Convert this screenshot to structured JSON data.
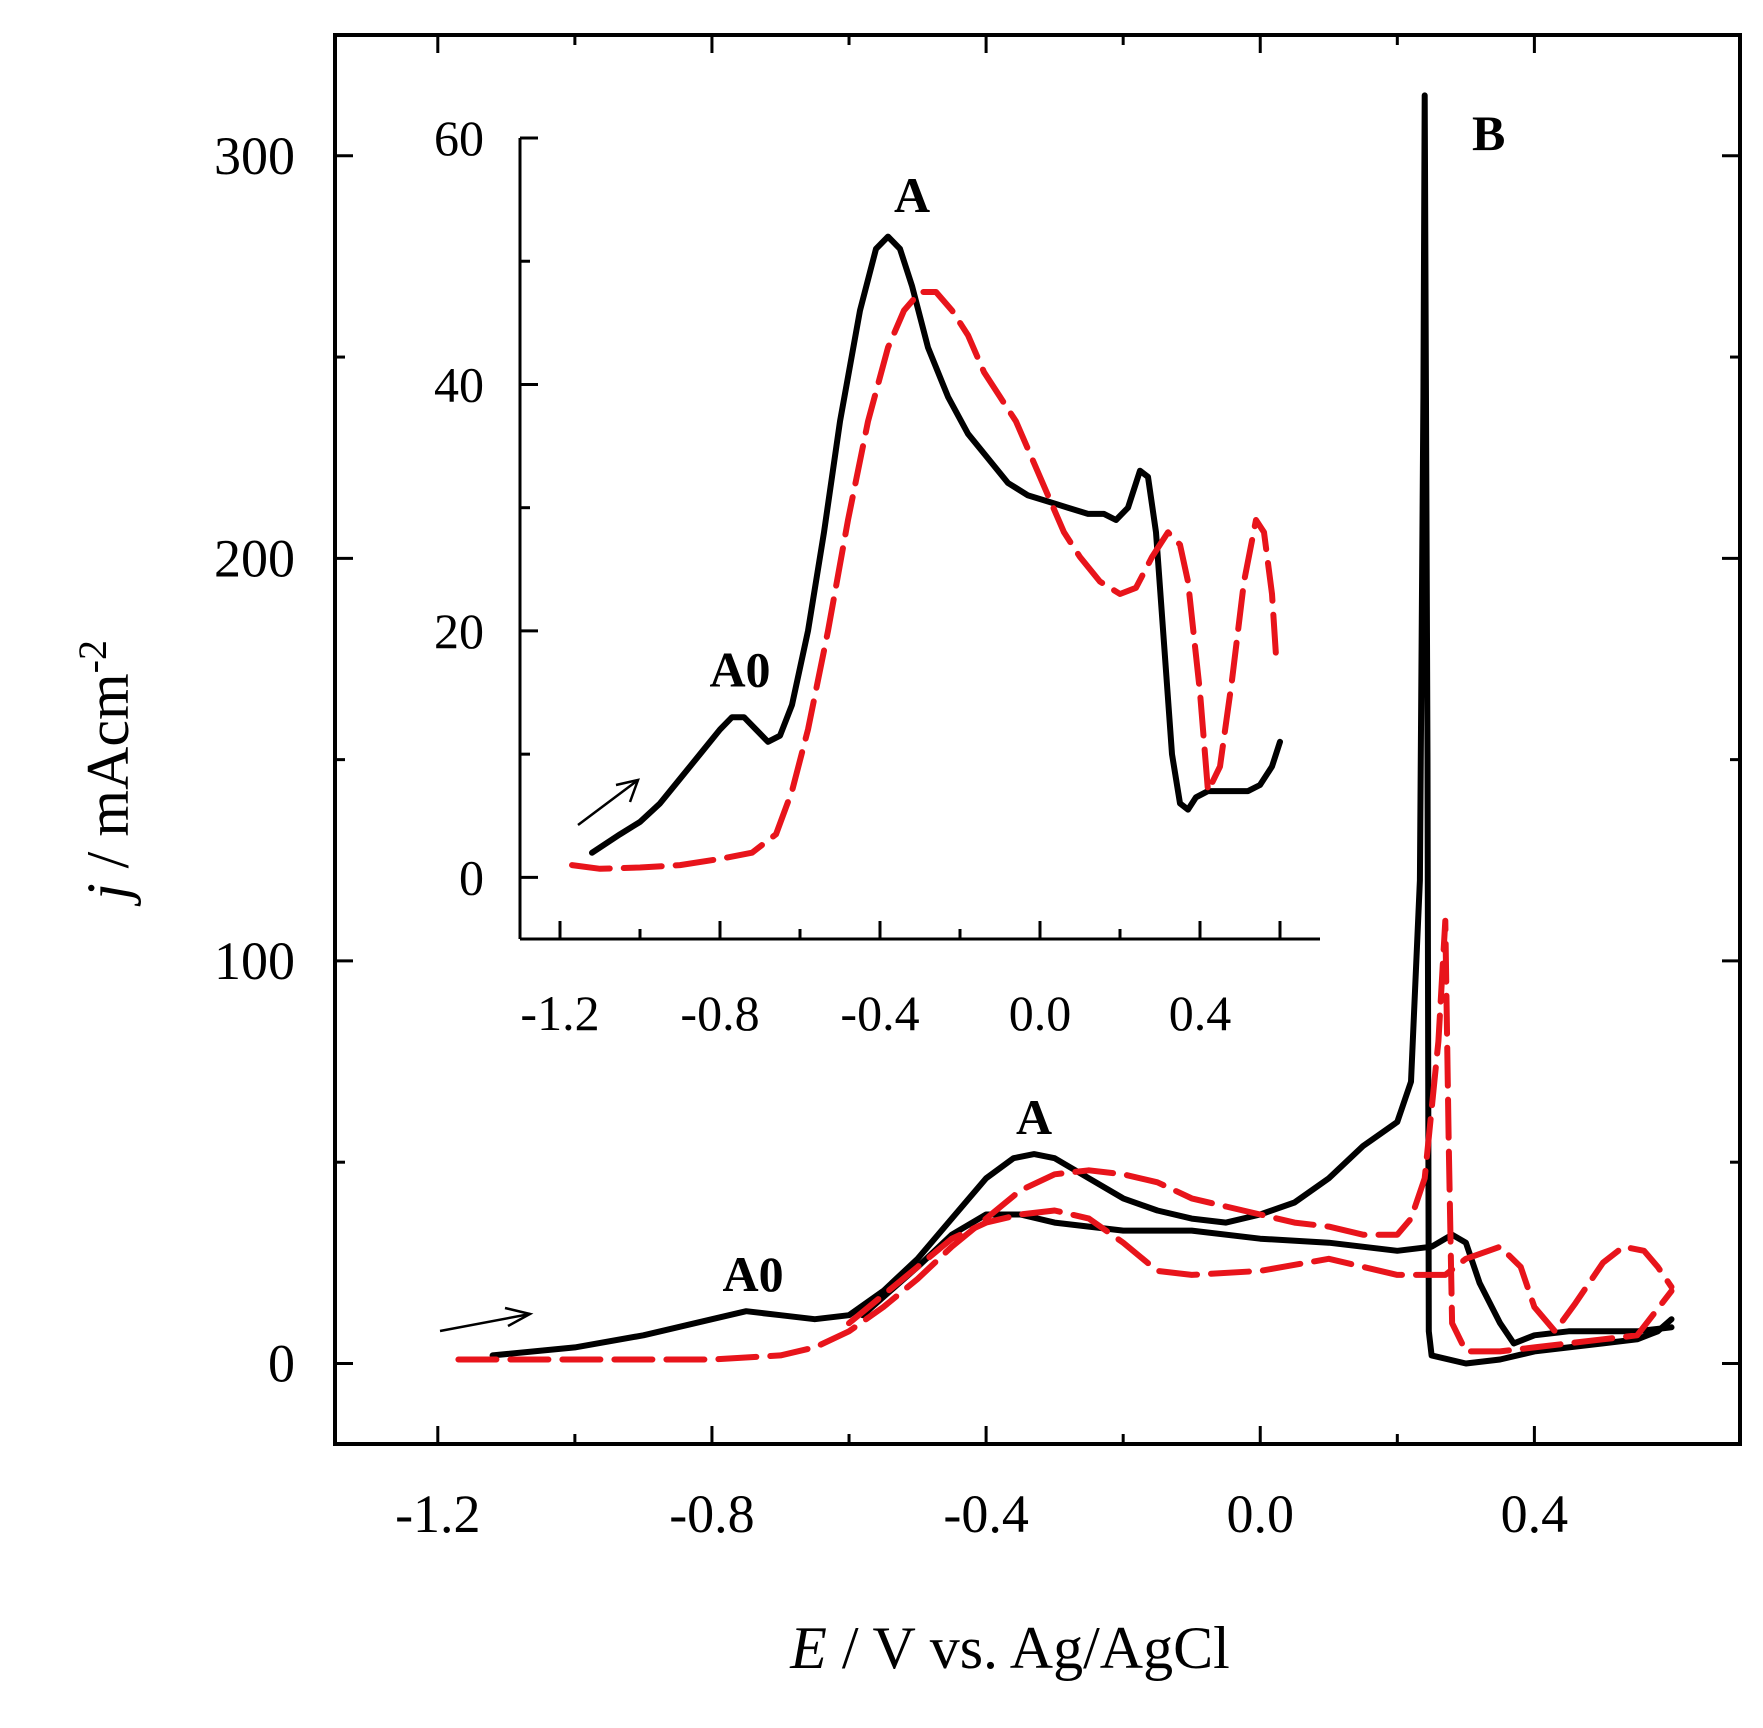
{
  "chart_data": {
    "type": "line",
    "panel_label": "B",
    "xlabel_italic": "E",
    "xlabel_rest": " / V vs. Ag/AgCl",
    "ylabel_italic": "j",
    "ylabel_rest": " / mAcm",
    "ylabel_sup": "-2",
    "colors": {
      "solid": "#000000",
      "dashed": "#e8141b"
    },
    "main": {
      "xlim": [
        -1.35,
        0.7
      ],
      "ylim": [
        -20,
        330
      ],
      "xticks": [
        -1.2,
        -0.8,
        -0.4,
        0.0,
        0.4
      ],
      "xtick_labels": [
        "-1.2",
        "-0.8",
        "-0.4",
        "0.0",
        "0.4"
      ],
      "yticks": [
        0,
        100,
        200,
        300
      ],
      "ytick_labels": [
        "0",
        "100",
        "200",
        "300"
      ],
      "annotations": [
        {
          "text": "A0",
          "x": -0.74,
          "y": 18
        },
        {
          "text": "A",
          "x": -0.33,
          "y": 57
        }
      ],
      "series": [
        {
          "style": "solid",
          "points": [
            [
              -1.12,
              2
            ],
            [
              -1.0,
              4
            ],
            [
              -0.9,
              7
            ],
            [
              -0.8,
              11
            ],
            [
              -0.75,
              13
            ],
            [
              -0.7,
              12
            ],
            [
              -0.65,
              11
            ],
            [
              -0.6,
              12
            ],
            [
              -0.55,
              18
            ],
            [
              -0.5,
              26
            ],
            [
              -0.45,
              36
            ],
            [
              -0.4,
              46
            ],
            [
              -0.36,
              51
            ],
            [
              -0.33,
              52
            ],
            [
              -0.3,
              51
            ],
            [
              -0.25,
              46
            ],
            [
              -0.2,
              41
            ],
            [
              -0.15,
              38
            ],
            [
              -0.1,
              36
            ],
            [
              -0.05,
              35
            ],
            [
              0.0,
              37
            ],
            [
              0.05,
              40
            ],
            [
              0.1,
              46
            ],
            [
              0.15,
              54
            ],
            [
              0.2,
              60
            ],
            [
              0.22,
              70
            ],
            [
              0.233,
              120
            ],
            [
              0.238,
              240
            ],
            [
              0.24,
              315
            ],
            [
              0.244,
              150
            ],
            [
              0.246,
              8
            ],
            [
              0.25,
              2
            ],
            [
              0.3,
              0
            ],
            [
              0.35,
              1
            ],
            [
              0.4,
              3
            ],
            [
              0.5,
              5
            ],
            [
              0.55,
              6
            ],
            [
              0.58,
              8
            ],
            [
              0.6,
              11
            ]
          ]
        },
        {
          "style": "solid",
          "points": [
            [
              -0.58,
              12
            ],
            [
              -0.5,
              24
            ],
            [
              -0.45,
              32
            ],
            [
              -0.4,
              37
            ],
            [
              -0.35,
              37
            ],
            [
              -0.3,
              35
            ],
            [
              -0.2,
              33
            ],
            [
              -0.1,
              33
            ],
            [
              0.0,
              31
            ],
            [
              0.1,
              30
            ],
            [
              0.2,
              28
            ],
            [
              0.25,
              29
            ],
            [
              0.28,
              32
            ],
            [
              0.3,
              30
            ],
            [
              0.32,
              20
            ],
            [
              0.35,
              10
            ],
            [
              0.37,
              5
            ],
            [
              0.4,
              7
            ],
            [
              0.45,
              8
            ],
            [
              0.5,
              8
            ],
            [
              0.55,
              8
            ],
            [
              0.6,
              9
            ]
          ]
        },
        {
          "style": "dashed",
          "points": [
            [
              -1.17,
              1
            ],
            [
              -1.0,
              1
            ],
            [
              -0.8,
              1
            ],
            [
              -0.7,
              2
            ],
            [
              -0.65,
              4
            ],
            [
              -0.6,
              8
            ],
            [
              -0.55,
              14
            ],
            [
              -0.5,
              21
            ],
            [
              -0.45,
              29
            ],
            [
              -0.4,
              36
            ],
            [
              -0.35,
              43
            ],
            [
              -0.3,
              47
            ],
            [
              -0.25,
              48
            ],
            [
              -0.2,
              47
            ],
            [
              -0.15,
              45
            ],
            [
              -0.1,
              41
            ],
            [
              -0.05,
              39
            ],
            [
              0.0,
              37
            ],
            [
              0.05,
              35
            ],
            [
              0.1,
              34
            ],
            [
              0.15,
              32
            ],
            [
              0.2,
              32
            ],
            [
              0.22,
              36
            ],
            [
              0.24,
              46
            ],
            [
              0.26,
              80
            ],
            [
              0.27,
              110
            ],
            [
              0.275,
              55
            ],
            [
              0.28,
              10
            ],
            [
              0.3,
              3
            ],
            [
              0.35,
              3
            ],
            [
              0.4,
              4
            ],
            [
              0.5,
              6
            ],
            [
              0.55,
              7
            ],
            [
              0.6,
              18
            ]
          ]
        },
        {
          "style": "dashed",
          "points": [
            [
              -0.6,
              10
            ],
            [
              -0.55,
              17
            ],
            [
              -0.5,
              24
            ],
            [
              -0.45,
              31
            ],
            [
              -0.4,
              35
            ],
            [
              -0.35,
              37
            ],
            [
              -0.3,
              38
            ],
            [
              -0.25,
              36
            ],
            [
              -0.2,
              30
            ],
            [
              -0.15,
              23
            ],
            [
              -0.1,
              22
            ],
            [
              0.0,
              23
            ],
            [
              0.1,
              26
            ],
            [
              0.2,
              22
            ],
            [
              0.27,
              22
            ],
            [
              0.3,
              26
            ],
            [
              0.35,
              29
            ],
            [
              0.38,
              24
            ],
            [
              0.4,
              14
            ],
            [
              0.43,
              8
            ],
            [
              0.46,
              15
            ],
            [
              0.5,
              25
            ],
            [
              0.53,
              29
            ],
            [
              0.56,
              28
            ],
            [
              0.58,
              24
            ],
            [
              0.6,
              19
            ]
          ]
        }
      ]
    },
    "inset": {
      "xlim": [
        -1.3,
        0.7
      ],
      "ylim": [
        -5,
        60
      ],
      "xticks": [
        -1.2,
        -0.8,
        -0.4,
        0.0,
        0.4
      ],
      "xtick_labels": [
        "-1.2",
        "-0.8",
        "-0.4",
        "0.0",
        "0.4"
      ],
      "yticks": [
        0,
        20,
        40,
        60
      ],
      "ytick_labels": [
        "0",
        "20",
        "40",
        "60"
      ],
      "annotations": [
        {
          "text": "A0",
          "x": -0.75,
          "y": 15.5
        },
        {
          "text": "A",
          "x": -0.32,
          "y": 54
        }
      ],
      "series": [
        {
          "style": "solid",
          "points": [
            [
              -1.12,
              2
            ],
            [
              -1.05,
              3.5
            ],
            [
              -1.0,
              4.5
            ],
            [
              -0.95,
              6
            ],
            [
              -0.9,
              8
            ],
            [
              -0.85,
              10
            ],
            [
              -0.8,
              12
            ],
            [
              -0.77,
              13
            ],
            [
              -0.74,
              13
            ],
            [
              -0.71,
              12
            ],
            [
              -0.68,
              11
            ],
            [
              -0.65,
              11.5
            ],
            [
              -0.62,
              14
            ],
            [
              -0.58,
              20
            ],
            [
              -0.54,
              28
            ],
            [
              -0.5,
              37
            ],
            [
              -0.45,
              46
            ],
            [
              -0.41,
              51
            ],
            [
              -0.38,
              52
            ],
            [
              -0.35,
              51
            ],
            [
              -0.32,
              48
            ],
            [
              -0.28,
              43
            ],
            [
              -0.23,
              39
            ],
            [
              -0.18,
              36
            ],
            [
              -0.13,
              34
            ],
            [
              -0.08,
              32
            ],
            [
              -0.03,
              31
            ],
            [
              0.02,
              30.5
            ],
            [
              0.07,
              30
            ],
            [
              0.12,
              29.5
            ],
            [
              0.16,
              29.5
            ],
            [
              0.19,
              29
            ],
            [
              0.22,
              30
            ],
            [
              0.25,
              33
            ],
            [
              0.27,
              32.5
            ],
            [
              0.29,
              28
            ],
            [
              0.31,
              19
            ],
            [
              0.33,
              10
            ],
            [
              0.35,
              6
            ],
            [
              0.37,
              5.5
            ],
            [
              0.39,
              6.5
            ],
            [
              0.42,
              7
            ],
            [
              0.47,
              7
            ],
            [
              0.52,
              7
            ],
            [
              0.55,
              7.5
            ],
            [
              0.58,
              9
            ],
            [
              0.6,
              11
            ]
          ]
        },
        {
          "style": "dashed",
          "points": [
            [
              -1.17,
              1
            ],
            [
              -1.1,
              0.7
            ],
            [
              -1.0,
              0.8
            ],
            [
              -0.9,
              1
            ],
            [
              -0.8,
              1.5
            ],
            [
              -0.72,
              2
            ],
            [
              -0.66,
              3.5
            ],
            [
              -0.62,
              7
            ],
            [
              -0.58,
              12
            ],
            [
              -0.53,
              20
            ],
            [
              -0.48,
              29
            ],
            [
              -0.43,
              37
            ],
            [
              -0.38,
              43
            ],
            [
              -0.34,
              46
            ],
            [
              -0.3,
              47.5
            ],
            [
              -0.26,
              47.5
            ],
            [
              -0.22,
              46
            ],
            [
              -0.18,
              44
            ],
            [
              -0.14,
              41
            ],
            [
              -0.1,
              39
            ],
            [
              -0.06,
              37
            ],
            [
              -0.02,
              34
            ],
            [
              0.02,
              31
            ],
            [
              0.06,
              28
            ],
            [
              0.1,
              26
            ],
            [
              0.15,
              24
            ],
            [
              0.2,
              23
            ],
            [
              0.24,
              23.5
            ],
            [
              0.28,
              26
            ],
            [
              0.32,
              28
            ],
            [
              0.35,
              27
            ],
            [
              0.37,
              24
            ],
            [
              0.4,
              15
            ],
            [
              0.42,
              7
            ],
            [
              0.45,
              9
            ],
            [
              0.48,
              16
            ],
            [
              0.51,
              24
            ],
            [
              0.54,
              29
            ],
            [
              0.56,
              28
            ],
            [
              0.58,
              23
            ],
            [
              0.59,
              18
            ]
          ]
        }
      ]
    }
  }
}
